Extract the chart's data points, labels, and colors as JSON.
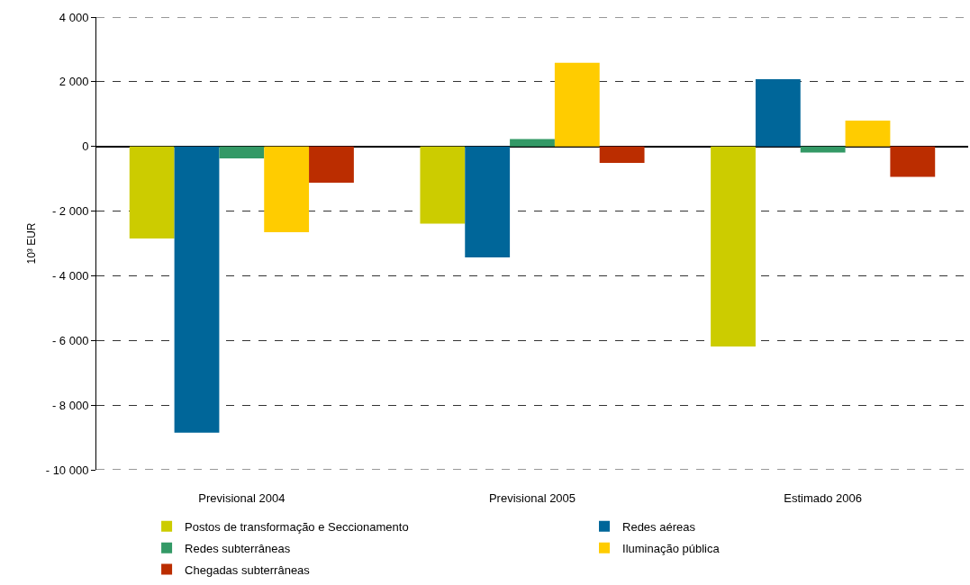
{
  "chart_data": {
    "type": "bar",
    "ylabel": "10³ EUR",
    "categories": [
      "Previsional 2004",
      "Previsional 2005",
      "Estimado 2006"
    ],
    "series": [
      {
        "name": "Postos de transformação e Seccionamento",
        "color": "#cccc00",
        "values": [
          -2850,
          -2390,
          -6190
        ]
      },
      {
        "name": "Redes aéreas",
        "color": "#006699",
        "values": [
          -8850,
          -3430,
          2080
        ]
      },
      {
        "name": "Redes subterrâneas",
        "color": "#339966",
        "values": [
          -370,
          230,
          -190
        ]
      },
      {
        "name": "Iluminação pública",
        "color": "#ffcc00",
        "values": [
          -2650,
          2590,
          800
        ]
      },
      {
        "name": "Chegadas subterrâneas",
        "color": "#bb2d00",
        "values": [
          -1120,
          -510,
          -940
        ]
      }
    ],
    "ylim": [
      -10000,
      4000
    ],
    "yticks": [
      {
        "value": 4000,
        "label": "4 000"
      },
      {
        "value": 2000,
        "label": "2 000"
      },
      0,
      {
        "value": -2000,
        "label": "- 2 000"
      },
      {
        "value": -4000,
        "label": "- 4 000"
      },
      {
        "value": -6000,
        "label": "- 6 000"
      },
      {
        "value": -8000,
        "label": "- 8 000"
      },
      {
        "value": -10000,
        "label": "- 10 000"
      }
    ],
    "grid": "y",
    "legend": "bottom"
  }
}
